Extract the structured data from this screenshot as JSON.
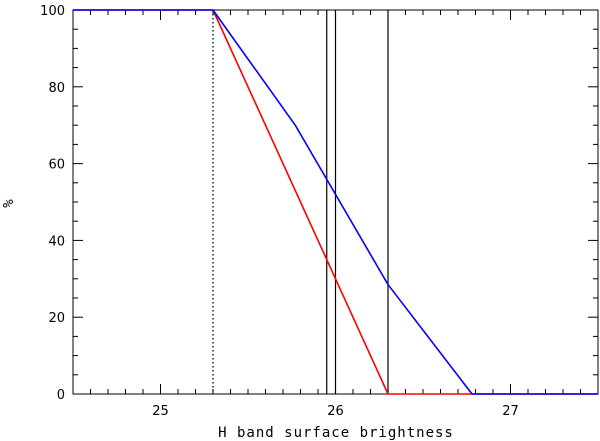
{
  "chart_data": {
    "type": "line",
    "title": "",
    "xlabel": "H band surface brightness",
    "ylabel": "%",
    "xlim": [
      24.5,
      27.5
    ],
    "ylim": [
      0,
      100
    ],
    "x_ticks_major": [
      25,
      26,
      27
    ],
    "x_tick_labels": [
      "25",
      "26",
      "27"
    ],
    "y_ticks_major": [
      0,
      20,
      40,
      60,
      80,
      100
    ],
    "y_tick_labels": [
      "0",
      "20",
      "40",
      "60",
      "80",
      "100"
    ],
    "grid": false,
    "series": [
      {
        "color": "#ff0000",
        "points": [
          [
            24.5,
            100
          ],
          [
            25.3,
            100
          ],
          [
            26.3,
            0
          ],
          [
            27.5,
            0
          ]
        ]
      },
      {
        "color": "#0000ff",
        "points": [
          [
            24.5,
            100
          ],
          [
            25.3,
            100
          ],
          [
            25.77,
            70
          ],
          [
            26.3,
            28.5
          ],
          [
            26.78,
            0
          ],
          [
            27.5,
            0
          ]
        ]
      }
    ],
    "vertical_lines": [
      {
        "x": 25.3,
        "style": "dotted",
        "color": "#000000"
      },
      {
        "x": 25.95,
        "style": "solid",
        "color": "#000000"
      },
      {
        "x": 26.0,
        "style": "solid",
        "color": "#000000"
      },
      {
        "x": 26.3,
        "style": "solid",
        "color": "#000000"
      }
    ]
  }
}
